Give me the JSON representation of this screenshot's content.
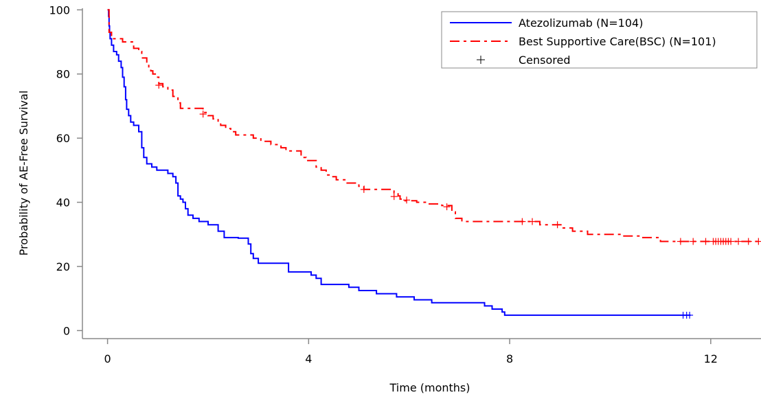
{
  "chart_data": {
    "type": "line",
    "subtype": "kaplan-meier",
    "xlabel": "Time (months)",
    "ylabel": "Probability of AE-Free Survival",
    "xlim": [
      -0.5,
      13
    ],
    "ylim": [
      -2.5,
      100.5
    ],
    "xticks": [
      0,
      4,
      8,
      12
    ],
    "yticks": [
      0,
      20,
      40,
      60,
      80,
      100
    ],
    "grid": false,
    "legend_position": "top-right",
    "series": [
      {
        "name": "Atezolizumab (N=104)",
        "color": "#0000ff",
        "dash": "solid",
        "steps": [
          [
            0,
            100
          ],
          [
            0.02,
            98
          ],
          [
            0.03,
            95
          ],
          [
            0.04,
            93
          ],
          [
            0.05,
            91
          ],
          [
            0.08,
            89
          ],
          [
            0.12,
            87
          ],
          [
            0.18,
            86
          ],
          [
            0.22,
            84
          ],
          [
            0.27,
            82
          ],
          [
            0.3,
            79
          ],
          [
            0.33,
            76
          ],
          [
            0.36,
            72
          ],
          [
            0.38,
            69
          ],
          [
            0.42,
            67
          ],
          [
            0.46,
            65
          ],
          [
            0.52,
            64
          ],
          [
            0.62,
            62
          ],
          [
            0.68,
            57
          ],
          [
            0.72,
            54
          ],
          [
            0.78,
            52
          ],
          [
            0.88,
            51
          ],
          [
            0.98,
            50
          ],
          [
            1.2,
            49
          ],
          [
            1.3,
            48
          ],
          [
            1.36,
            46
          ],
          [
            1.4,
            42
          ],
          [
            1.45,
            41
          ],
          [
            1.5,
            40
          ],
          [
            1.55,
            38
          ],
          [
            1.6,
            36
          ],
          [
            1.7,
            35
          ],
          [
            1.82,
            34
          ],
          [
            2.0,
            33
          ],
          [
            2.2,
            31
          ],
          [
            2.32,
            29
          ],
          [
            2.6,
            28.8
          ],
          [
            2.8,
            27
          ],
          [
            2.85,
            24
          ],
          [
            2.9,
            22.5
          ],
          [
            3.0,
            21
          ],
          [
            3.6,
            18.3
          ],
          [
            4.05,
            17.3
          ],
          [
            4.15,
            16.3
          ],
          [
            4.25,
            14.4
          ],
          [
            4.8,
            13.5
          ],
          [
            5.0,
            12.5
          ],
          [
            5.35,
            11.5
          ],
          [
            5.75,
            10.5
          ],
          [
            6.1,
            9.6
          ],
          [
            6.45,
            8.7
          ],
          [
            7.5,
            7.7
          ],
          [
            7.65,
            6.7
          ],
          [
            7.85,
            5.8
          ],
          [
            7.9,
            4.8
          ],
          [
            11.6,
            4.8
          ]
        ],
        "censored": [
          [
            11.45,
            4.8
          ],
          [
            11.52,
            4.8
          ],
          [
            11.58,
            4.8
          ]
        ]
      },
      {
        "name": "Best Supportive Care(BSC) (N=101)",
        "color": "#ff0000",
        "dash": "dash-dot",
        "steps": [
          [
            0,
            100
          ],
          [
            0.03,
            93
          ],
          [
            0.08,
            91
          ],
          [
            0.3,
            90
          ],
          [
            0.52,
            88
          ],
          [
            0.62,
            87
          ],
          [
            0.68,
            85
          ],
          [
            0.78,
            83
          ],
          [
            0.82,
            82
          ],
          [
            0.86,
            81
          ],
          [
            0.9,
            80
          ],
          [
            0.95,
            79
          ],
          [
            1.02,
            77
          ],
          [
            1.1,
            76
          ],
          [
            1.2,
            75
          ],
          [
            1.3,
            73
          ],
          [
            1.4,
            71
          ],
          [
            1.45,
            69.3
          ],
          [
            1.9,
            68
          ],
          [
            2.0,
            67
          ],
          [
            2.1,
            66
          ],
          [
            2.2,
            65
          ],
          [
            2.25,
            64
          ],
          [
            2.35,
            63
          ],
          [
            2.45,
            62
          ],
          [
            2.55,
            61
          ],
          [
            2.9,
            60
          ],
          [
            3.05,
            59
          ],
          [
            3.25,
            58
          ],
          [
            3.45,
            57
          ],
          [
            3.55,
            56
          ],
          [
            3.85,
            54
          ],
          [
            3.95,
            53
          ],
          [
            4.15,
            51
          ],
          [
            4.25,
            50
          ],
          [
            4.35,
            48.5
          ],
          [
            4.45,
            48
          ],
          [
            4.55,
            47
          ],
          [
            4.75,
            46
          ],
          [
            5.0,
            45
          ],
          [
            5.1,
            44
          ],
          [
            5.7,
            43
          ],
          [
            5.78,
            42
          ],
          [
            5.82,
            41
          ],
          [
            5.88,
            40.5
          ],
          [
            6.15,
            40
          ],
          [
            6.35,
            39.5
          ],
          [
            6.65,
            39
          ],
          [
            6.85,
            37
          ],
          [
            6.92,
            35
          ],
          [
            7.05,
            34
          ],
          [
            8.6,
            33
          ],
          [
            9.05,
            32
          ],
          [
            9.25,
            31
          ],
          [
            9.55,
            30
          ],
          [
            10.25,
            29.5
          ],
          [
            10.65,
            29
          ],
          [
            11.0,
            27.8
          ],
          [
            13.0,
            27.8
          ]
        ],
        "censored": [
          [
            1.02,
            76.5
          ],
          [
            1.9,
            67.5
          ],
          [
            5.1,
            44
          ],
          [
            5.7,
            41.8
          ],
          [
            5.95,
            40.7
          ],
          [
            6.75,
            38.6
          ],
          [
            8.25,
            34
          ],
          [
            8.45,
            34
          ],
          [
            8.95,
            33
          ],
          [
            11.4,
            27.8
          ],
          [
            11.65,
            27.8
          ],
          [
            11.9,
            27.8
          ],
          [
            12.05,
            27.8
          ],
          [
            12.1,
            27.8
          ],
          [
            12.15,
            27.8
          ],
          [
            12.2,
            27.8
          ],
          [
            12.25,
            27.8
          ],
          [
            12.3,
            27.8
          ],
          [
            12.35,
            27.8
          ],
          [
            12.4,
            27.8
          ],
          [
            12.55,
            27.8
          ],
          [
            12.75,
            27.8
          ],
          [
            12.95,
            27.8
          ]
        ]
      }
    ],
    "legend_entries": [
      {
        "label": "Atezolizumab (N=104)",
        "symbol": "solid-line",
        "color": "#0000ff"
      },
      {
        "label": "Best Supportive Care(BSC) (N=101)",
        "symbol": "dash-dot-line",
        "color": "#ff0000"
      },
      {
        "label": "Censored",
        "symbol": "plus",
        "color": "#000000"
      }
    ]
  }
}
